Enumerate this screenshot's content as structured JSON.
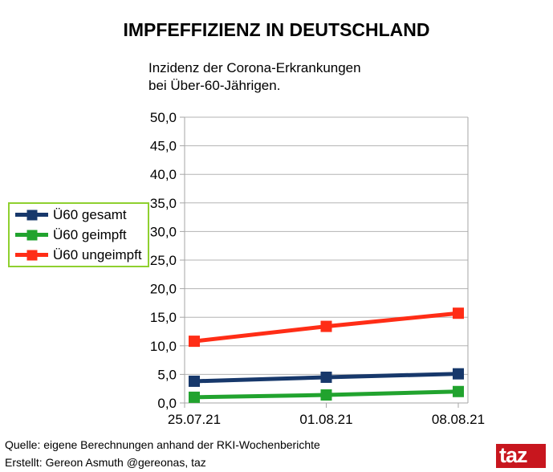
{
  "page": {
    "title": "IMPFEFFIZIENZ IN DEUTSCHLAND",
    "subtitle_line1": "Inzidenz der Corona-Erkrankungen",
    "subtitle_line2": "bei Über-60-Jährigen.",
    "footer": {
      "source": "Quelle: eigene Berechnungen anhand der RKI-Wochenberichte",
      "credit": "Erstellt: Gereon Asmuth @gereonas, taz",
      "logo_text": "taz",
      "logo_color": "#c8161e"
    }
  },
  "chart_data": {
    "type": "line",
    "title": "IMPFEFFIZIENZ IN DEUTSCHLAND",
    "subtitle": "Inzidenz der Corona-Erkrankungen bei Über-60-Jährigen.",
    "categories": [
      "25.07.21",
      "01.08.21",
      "08.08.21"
    ],
    "series": [
      {
        "name": "Ü60 gesamt",
        "color": "#17386b",
        "values": [
          3.8,
          4.5,
          5.1
        ]
      },
      {
        "name": "Ü60 geimpft",
        "color": "#21a32e",
        "values": [
          1.0,
          1.4,
          2.0
        ]
      },
      {
        "name": "Ü60 ungeimpft",
        "color": "#ff2d16",
        "values": [
          10.8,
          13.4,
          15.7
        ]
      }
    ],
    "ylim": [
      0,
      50
    ],
    "y_tick_step": 5,
    "y_tick_labels": [
      "0,0",
      "5,0",
      "10,0",
      "15,0",
      "20,0",
      "25,0",
      "30,0",
      "35,0",
      "40,0",
      "45,0",
      "50,0"
    ],
    "xlabel": "",
    "ylabel": "",
    "grid": true,
    "grid_color": "#b3b3b3",
    "axis_color": "#a6a6a6",
    "legend_position": "left",
    "legend_border_color": "#8fd02f"
  }
}
